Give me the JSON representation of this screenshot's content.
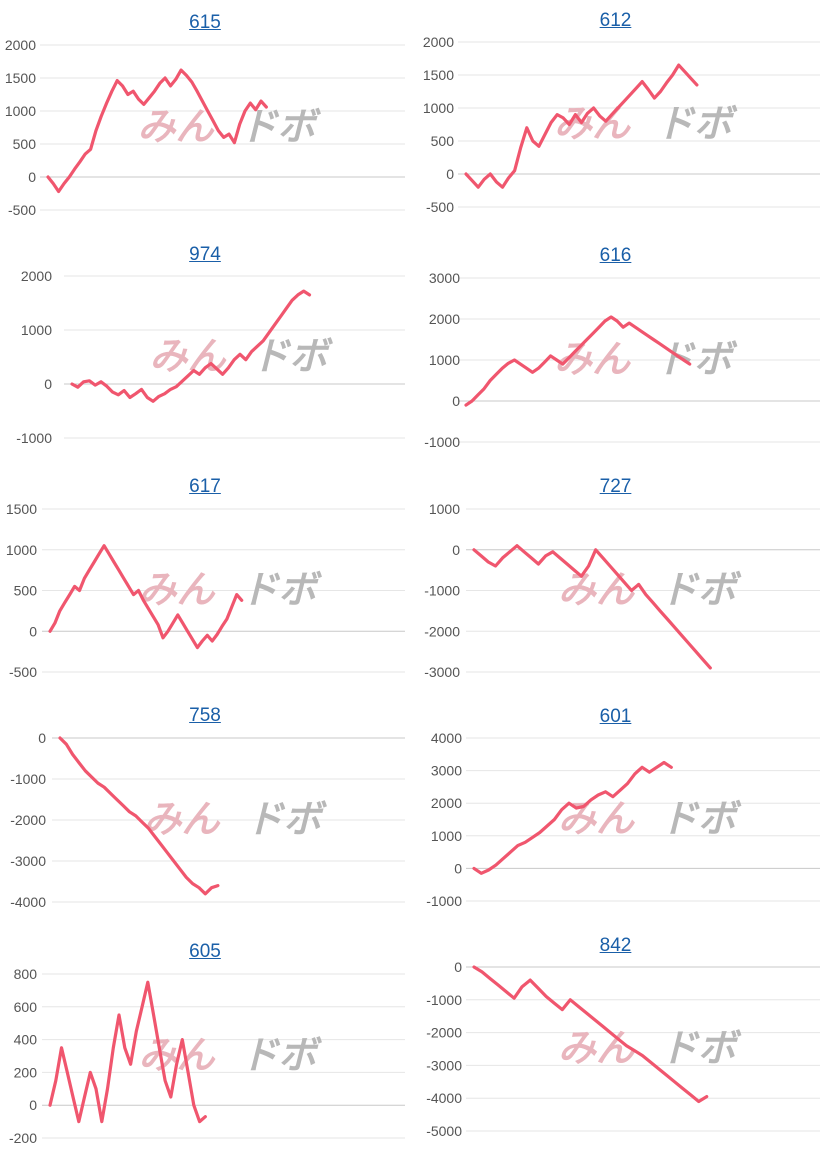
{
  "chart_data": [
    {
      "type": "line",
      "title": "615",
      "ylim": [
        -500,
        2000
      ],
      "yticks": [
        2000,
        1500,
        1000,
        500,
        0,
        -500
      ],
      "values": [
        0,
        -100,
        -220,
        -100,
        0,
        120,
        230,
        350,
        420,
        700,
        920,
        1120,
        1300,
        1460,
        1380,
        1250,
        1300,
        1180,
        1100,
        1200,
        1300,
        1420,
        1500,
        1380,
        1480,
        1620,
        1540,
        1440,
        1300,
        1150,
        1000,
        850,
        700,
        600,
        650,
        520,
        800,
        1000,
        1120,
        1020,
        1150,
        1060
      ],
      "color": "#f0566e"
    },
    {
      "type": "line",
      "title": "612",
      "ylim": [
        -500,
        2000
      ],
      "yticks": [
        2000,
        1500,
        1000,
        500,
        0,
        -500
      ],
      "values": [
        0,
        -100,
        -200,
        -80,
        0,
        -120,
        -200,
        -60,
        50,
        400,
        700,
        500,
        420,
        600,
        780,
        900,
        850,
        750,
        900,
        780,
        920,
        1000,
        880,
        800,
        900,
        1000,
        1100,
        1200,
        1300,
        1400,
        1280,
        1150,
        1250,
        1380,
        1500,
        1650,
        1550,
        1450,
        1350
      ],
      "color": "#f0566e"
    },
    {
      "type": "line",
      "title": "974",
      "ylim": [
        -1000,
        2000
      ],
      "yticks": [
        2000,
        1000,
        0,
        -1000
      ],
      "values": [
        0,
        -60,
        40,
        60,
        -20,
        40,
        -40,
        -150,
        -200,
        -120,
        -250,
        -180,
        -100,
        -250,
        -320,
        -230,
        -180,
        -100,
        -50,
        50,
        150,
        250,
        180,
        300,
        380,
        280,
        180,
        300,
        450,
        550,
        450,
        600,
        700,
        800,
        950,
        1100,
        1250,
        1400,
        1550,
        1650,
        1720,
        1650
      ],
      "color": "#f0566e"
    },
    {
      "type": "line",
      "title": "616",
      "ylim": [
        -1000,
        3000
      ],
      "yticks": [
        3000,
        2000,
        1000,
        0,
        -1000
      ],
      "values": [
        -100,
        0,
        150,
        300,
        500,
        650,
        800,
        920,
        1000,
        900,
        800,
        700,
        800,
        950,
        1100,
        1000,
        900,
        1050,
        1200,
        1350,
        1500,
        1650,
        1800,
        1950,
        2050,
        1950,
        1800,
        1900,
        1800,
        1700,
        1600,
        1500,
        1400,
        1300,
        1200,
        1100,
        1000,
        900
      ],
      "color": "#f0566e"
    },
    {
      "type": "line",
      "title": "617",
      "ylim": [
        -500,
        1500
      ],
      "yticks": [
        1500,
        1000,
        500,
        0,
        -500
      ],
      "values": [
        0,
        100,
        250,
        350,
        450,
        550,
        500,
        650,
        750,
        850,
        950,
        1050,
        950,
        850,
        750,
        650,
        550,
        450,
        500,
        380,
        280,
        180,
        80,
        -80,
        0,
        100,
        200,
        100,
        0,
        -100,
        -200,
        -120,
        -50,
        -120,
        -40,
        60,
        150,
        300,
        450,
        380
      ],
      "color": "#f0566e"
    },
    {
      "type": "line",
      "title": "727",
      "ylim": [
        -3000,
        1000
      ],
      "yticks": [
        1000,
        0,
        -1000,
        -2000,
        -3000
      ],
      "values": [
        0,
        -150,
        -300,
        -400,
        -200,
        -50,
        100,
        -50,
        -200,
        -350,
        -150,
        -50,
        -200,
        -350,
        -500,
        -650,
        -400,
        0,
        -200,
        -400,
        -600,
        -800,
        -1000,
        -850,
        -1100,
        -1300,
        -1500,
        -1700,
        -1900,
        -2100,
        -2300,
        -2500,
        -2700,
        -2900
      ],
      "color": "#f0566e"
    },
    {
      "type": "line",
      "title": "758",
      "ylim": [
        -4000,
        0
      ],
      "yticks": [
        0,
        -1000,
        -2000,
        -3000,
        -4000
      ],
      "values": [
        0,
        -150,
        -400,
        -600,
        -800,
        -950,
        -1100,
        -1200,
        -1350,
        -1500,
        -1650,
        -1800,
        -1900,
        -2050,
        -2200,
        -2400,
        -2600,
        -2800,
        -3000,
        -3200,
        -3400,
        -3550,
        -3650,
        -3800,
        -3650,
        -3600
      ],
      "color": "#f0566e"
    },
    {
      "type": "line",
      "title": "601",
      "ylim": [
        -1000,
        4000
      ],
      "yticks": [
        4000,
        3000,
        2000,
        1000,
        0,
        -1000
      ],
      "values": [
        0,
        -150,
        -50,
        100,
        300,
        500,
        700,
        800,
        950,
        1100,
        1300,
        1500,
        1800,
        2000,
        1850,
        1900,
        2100,
        2250,
        2350,
        2200,
        2400,
        2600,
        2900,
        3100,
        2950,
        3100,
        3250,
        3100
      ],
      "color": "#f0566e"
    },
    {
      "type": "line",
      "title": "605",
      "ylim": [
        -200,
        800
      ],
      "yticks": [
        800,
        600,
        400,
        200,
        0,
        -200
      ],
      "values": [
        0,
        150,
        350,
        200,
        50,
        -100,
        50,
        200,
        100,
        -100,
        100,
        350,
        550,
        350,
        250,
        450,
        600,
        750,
        550,
        350,
        150,
        50,
        250,
        400,
        200,
        0,
        -100,
        -70
      ],
      "color": "#f0566e"
    },
    {
      "type": "line",
      "title": "842",
      "ylim": [
        -5000,
        0
      ],
      "yticks": [
        0,
        -1000,
        -2000,
        -3000,
        -4000,
        -5000
      ],
      "values": [
        0,
        -150,
        -350,
        -550,
        -750,
        -950,
        -600,
        -400,
        -650,
        -900,
        -1100,
        -1300,
        -1000,
        -1200,
        -1400,
        -1600,
        -1800,
        -2000,
        -2200,
        -2400,
        -2550,
        -2700,
        -2900,
        -3100,
        -3300,
        -3500,
        -3700,
        -3900,
        -4100,
        -3950
      ],
      "color": "#f0566e"
    }
  ],
  "watermark": {
    "part1": "みん",
    "part2": "ドボ"
  }
}
